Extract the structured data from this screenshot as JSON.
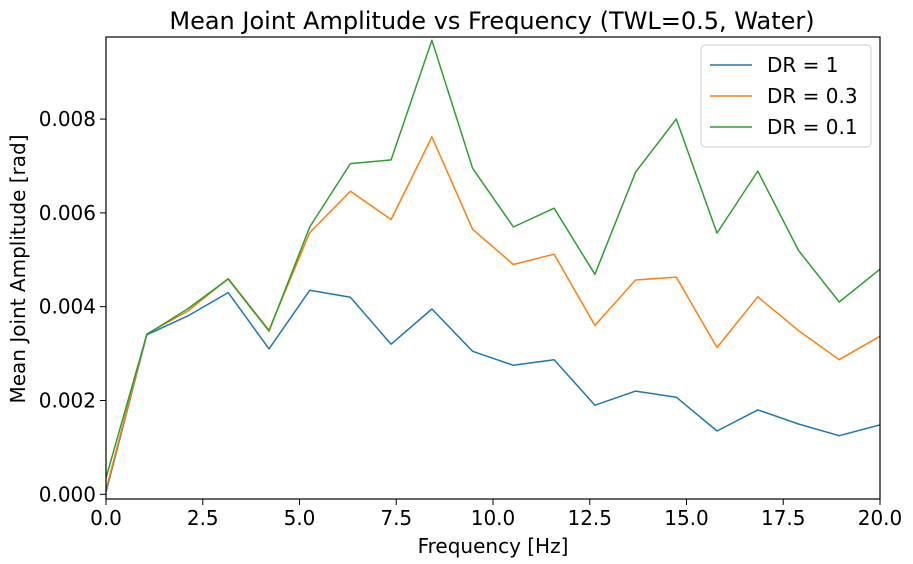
{
  "chart_data": {
    "type": "line",
    "title": "Mean Joint Amplitude vs Frequency (TWL=0.5, Water)",
    "xlabel": "Frequency [Hz]",
    "ylabel": "Mean Joint Amplitude [rad]",
    "xlim": [
      0,
      20
    ],
    "ylim": [
      -0.0001,
      0.00975
    ],
    "xticks": [
      0,
      2.5,
      5,
      7.5,
      10,
      12.5,
      15,
      17.5,
      20
    ],
    "xtick_labels": [
      "0.0",
      "2.5",
      "5.0",
      "7.5",
      "10.0",
      "12.5",
      "15.0",
      "17.5",
      "20.0"
    ],
    "yticks": [
      0,
      0.002,
      0.004,
      0.006,
      0.008
    ],
    "ytick_labels": [
      "0.000",
      "0.002",
      "0.004",
      "0.006",
      "0.008"
    ],
    "grid": false,
    "legend_position": "top-right",
    "x": [
      0,
      1.053,
      2.105,
      3.158,
      4.211,
      5.263,
      6.316,
      7.368,
      8.421,
      9.474,
      10.526,
      11.579,
      12.632,
      13.684,
      14.737,
      15.789,
      16.842,
      17.895,
      18.947,
      20.0
    ],
    "series": [
      {
        "name": "DR = 1",
        "color": "#1f77b4",
        "values": [
          5e-05,
          0.0034,
          0.0038,
          0.0043,
          0.0031,
          0.00435,
          0.0042,
          0.0032,
          0.00395,
          0.00305,
          0.00275,
          0.00287,
          0.0019,
          0.0022,
          0.00207,
          0.00135,
          0.0018,
          0.0015,
          0.00125,
          0.00148
        ]
      },
      {
        "name": "DR = 0.3",
        "color": "#ff7f0e",
        "values": [
          0.0001,
          0.00342,
          0.0039,
          0.0046,
          0.0035,
          0.00558,
          0.00646,
          0.00586,
          0.00762,
          0.00565,
          0.0049,
          0.00512,
          0.0036,
          0.00457,
          0.00463,
          0.00313,
          0.00421,
          0.00349,
          0.00287,
          0.00337
        ]
      },
      {
        "name": "DR = 0.1",
        "color": "#2ca02c",
        "values": [
          0.00035,
          0.00341,
          0.00395,
          0.00459,
          0.00348,
          0.0057,
          0.00705,
          0.00713,
          0.00968,
          0.00695,
          0.0057,
          0.0061,
          0.00469,
          0.00687,
          0.008,
          0.00557,
          0.00689,
          0.0052,
          0.0041,
          0.0048
        ]
      }
    ]
  }
}
